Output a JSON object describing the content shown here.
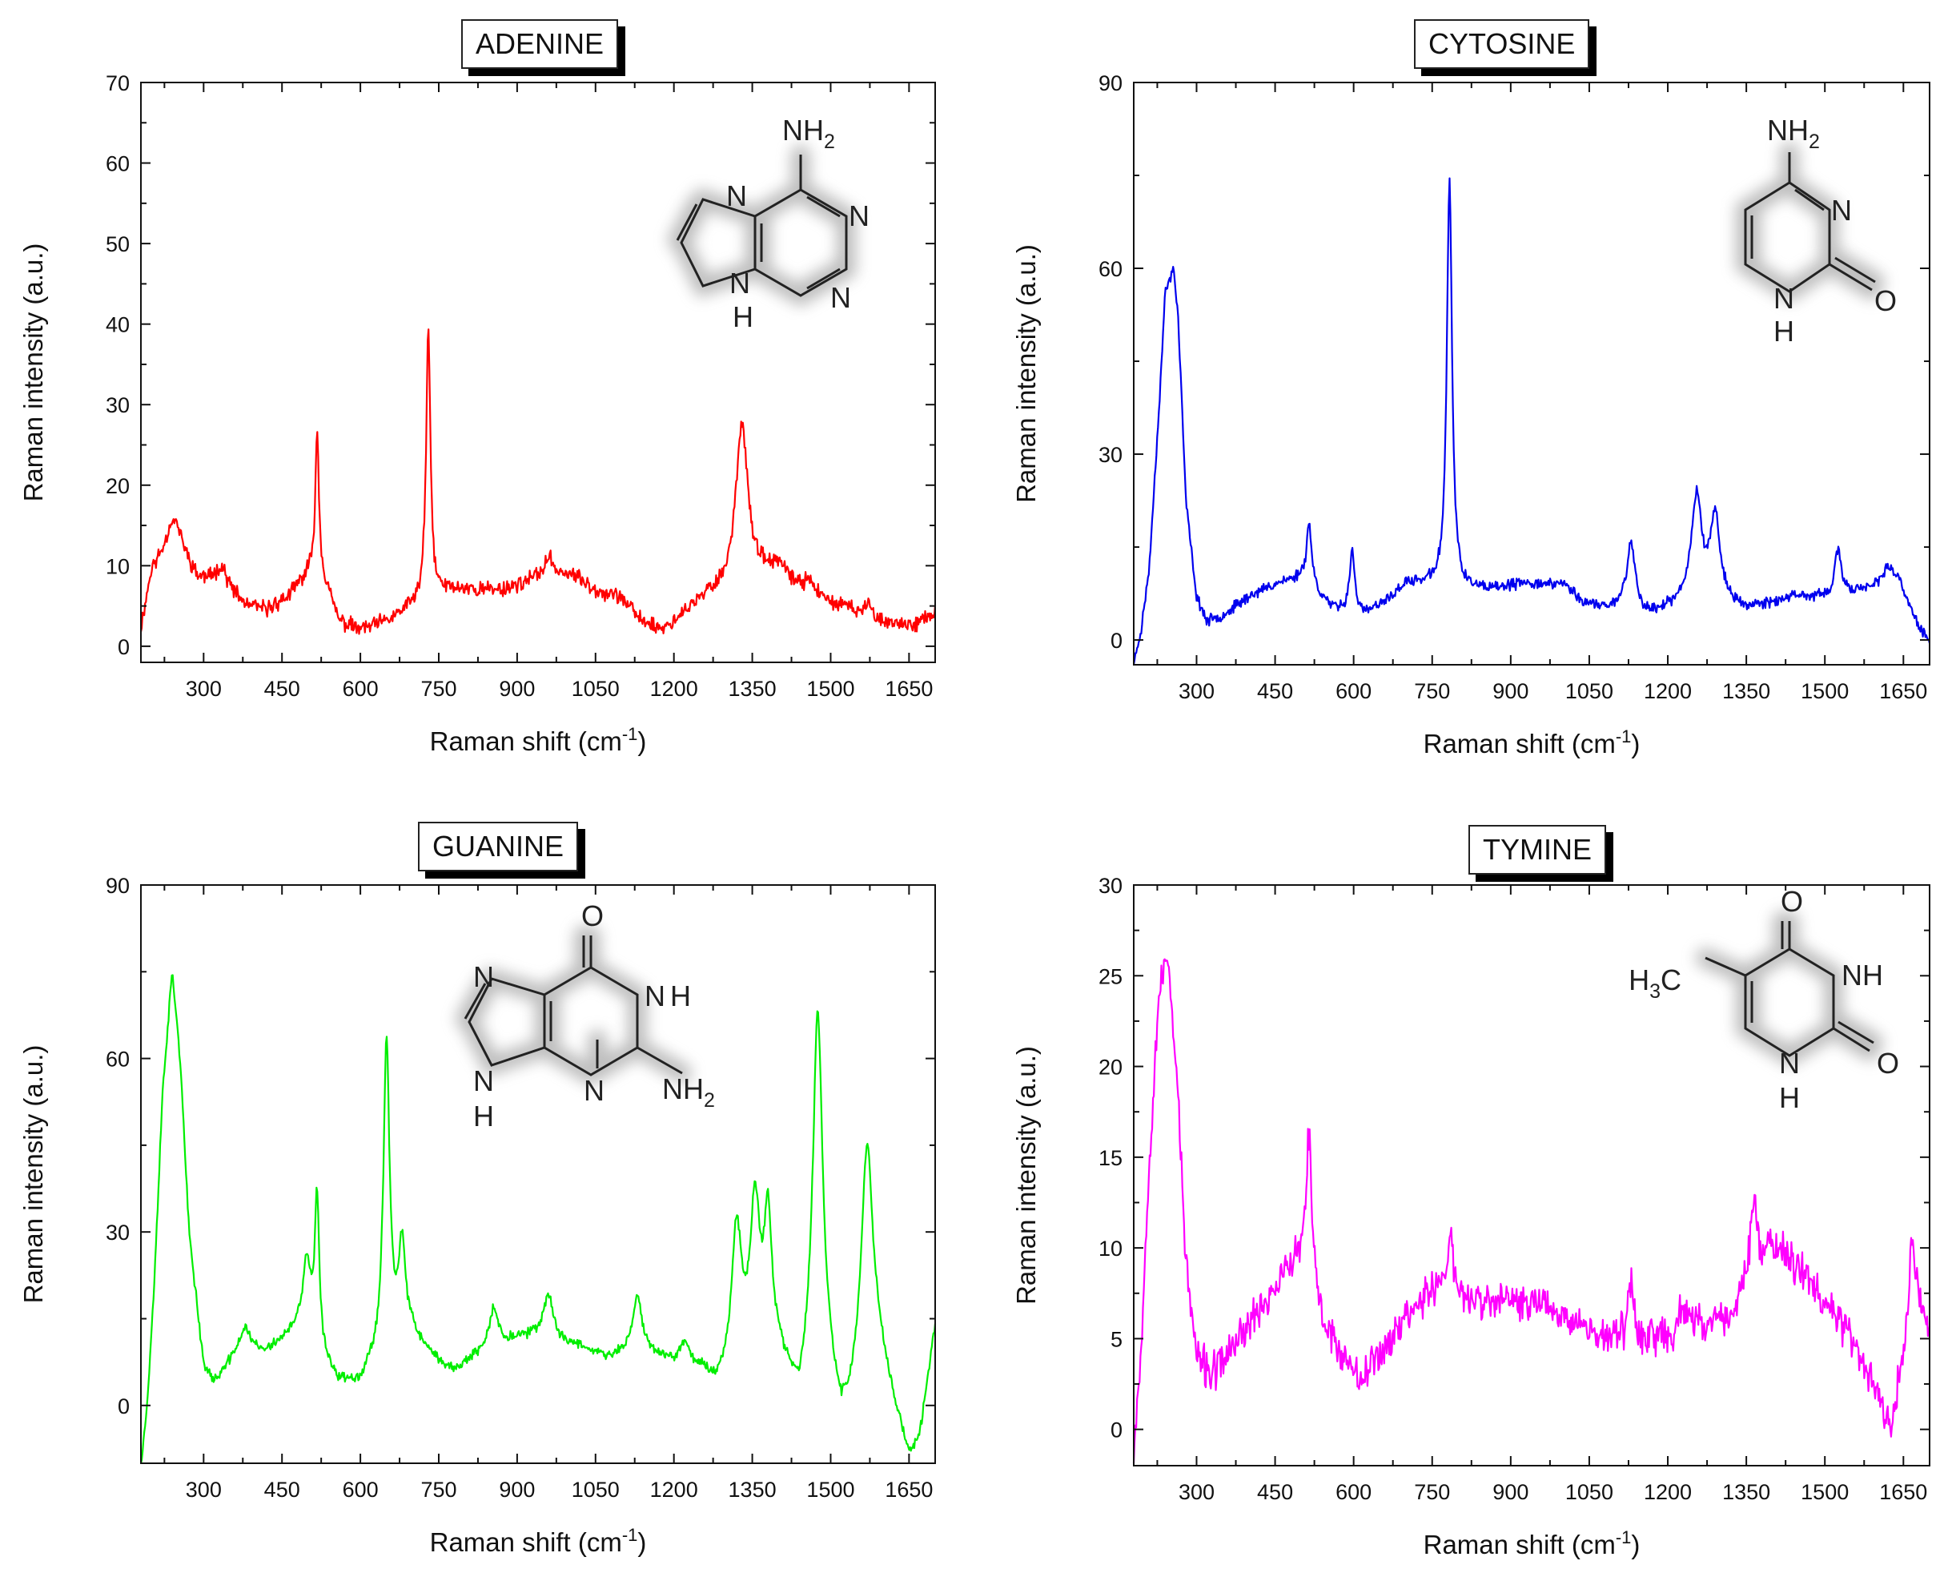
{
  "chart_data": [
    {
      "type": "line",
      "title": "ADENINE",
      "xlabel": "Raman shift (cm",
      "xlabel_sup": "-1",
      "xlabel_close": ")",
      "ylabel": "Raman intensity (a.u.)",
      "xlim": [
        180,
        1700
      ],
      "ylim": [
        -2,
        70
      ],
      "xticks": [
        300,
        450,
        600,
        750,
        900,
        1050,
        1200,
        1350,
        1500,
        1650
      ],
      "yticks": [
        0,
        10,
        20,
        30,
        40,
        50,
        60,
        70
      ],
      "color": "#ff0000",
      "baseline": [
        [
          180,
          2
        ],
        [
          200,
          9
        ],
        [
          240,
          12
        ],
        [
          290,
          8
        ],
        [
          330,
          8
        ],
        [
          380,
          5
        ],
        [
          420,
          4.5
        ],
        [
          460,
          6
        ],
        [
          500,
          9
        ],
        [
          520,
          10
        ],
        [
          560,
          3
        ],
        [
          600,
          2
        ],
        [
          650,
          3
        ],
        [
          700,
          5
        ],
        [
          730,
          6
        ],
        [
          770,
          7
        ],
        [
          820,
          7
        ],
        [
          870,
          7
        ],
        [
          920,
          8
        ],
        [
          960,
          9
        ],
        [
          1000,
          9
        ],
        [
          1050,
          7
        ],
        [
          1100,
          6
        ],
        [
          1140,
          3
        ],
        [
          1180,
          2
        ],
        [
          1220,
          4
        ],
        [
          1260,
          6
        ],
        [
          1300,
          7
        ],
        [
          1340,
          8
        ],
        [
          1380,
          9
        ],
        [
          1420,
          8
        ],
        [
          1470,
          6
        ],
        [
          1520,
          5
        ],
        [
          1560,
          4
        ],
        [
          1600,
          3
        ],
        [
          1650,
          2.5
        ],
        [
          1700,
          4
        ]
      ],
      "peaks": [
        [
          245,
          4,
          20
        ],
        [
          335,
          2,
          12
        ],
        [
          517,
          17,
          4
        ],
        [
          730,
          33,
          5
        ],
        [
          960,
          2,
          10
        ],
        [
          1330,
          20,
          14
        ],
        [
          1400,
          1.5,
          10
        ],
        [
          1460,
          2,
          10
        ],
        [
          1575,
          2,
          6
        ]
      ],
      "noise": 1.0,
      "seed": 11,
      "molecule": "adenine",
      "mol_labels": {
        "amine": "NH",
        "amine_sub": "2",
        "n1": "N",
        "n3": "N",
        "n7": "N",
        "n9": "N",
        "h9": "H"
      }
    },
    {
      "type": "line",
      "title": "CYTOSINE",
      "xlabel": "Raman shift (cm",
      "xlabel_sup": "-1",
      "xlabel_close": ")",
      "ylabel": "Raman intensity (a.u.)",
      "xlim": [
        180,
        1700
      ],
      "ylim": [
        -4,
        90
      ],
      "xticks": [
        300,
        450,
        600,
        750,
        900,
        1050,
        1200,
        1350,
        1500,
        1650
      ],
      "yticks": [
        0,
        30,
        60,
        90
      ],
      "color": "#0000ee",
      "baseline": [
        [
          180,
          -4
        ],
        [
          195,
          2
        ],
        [
          210,
          12
        ],
        [
          230,
          40
        ],
        [
          240,
          56
        ],
        [
          256,
          60
        ],
        [
          265,
          52
        ],
        [
          280,
          22
        ],
        [
          300,
          7
        ],
        [
          320,
          3
        ],
        [
          350,
          4
        ],
        [
          400,
          7
        ],
        [
          450,
          9
        ],
        [
          500,
          10
        ],
        [
          560,
          5
        ],
        [
          620,
          4
        ],
        [
          660,
          6
        ],
        [
          700,
          9
        ],
        [
          740,
          9
        ],
        [
          800,
          8
        ],
        [
          860,
          8
        ],
        [
          920,
          9
        ],
        [
          1000,
          9
        ],
        [
          1040,
          6
        ],
        [
          1080,
          5
        ],
        [
          1120,
          6
        ],
        [
          1160,
          4
        ],
        [
          1200,
          5
        ],
        [
          1240,
          6
        ],
        [
          1300,
          7
        ],
        [
          1340,
          5
        ],
        [
          1400,
          6
        ],
        [
          1450,
          7
        ],
        [
          1500,
          7
        ],
        [
          1560,
          8
        ],
        [
          1600,
          9
        ],
        [
          1640,
          10
        ],
        [
          1680,
          2
        ],
        [
          1700,
          0
        ]
      ],
      "peaks": [
        [
          515,
          10,
          6
        ],
        [
          597,
          10,
          6
        ],
        [
          783,
          66,
          6
        ],
        [
          1130,
          10,
          9
        ],
        [
          1255,
          17,
          12
        ],
        [
          1290,
          13,
          10
        ],
        [
          1525,
          7,
          7
        ],
        [
          1620,
          2,
          10
        ]
      ],
      "noise": 0.9,
      "seed": 23,
      "molecule": "cytosine",
      "mol_labels": {
        "amine": "NH",
        "amine_sub": "2",
        "n3": "N",
        "n1": "N",
        "h1": "H",
        "o": "O"
      }
    },
    {
      "type": "line",
      "title": "GUANINE",
      "xlabel": "Raman shift (cm",
      "xlabel_sup": "-1",
      "xlabel_close": ")",
      "ylabel": "Raman intensity (a.u.)",
      "xlim": [
        180,
        1700
      ],
      "ylim": [
        -10,
        90
      ],
      "xticks": [
        300,
        450,
        600,
        750,
        900,
        1050,
        1200,
        1350,
        1500,
        1650
      ],
      "yticks": [
        0,
        30,
        60,
        90
      ],
      "color": "#00ee00",
      "baseline": [
        [
          180,
          -10
        ],
        [
          192,
          0
        ],
        [
          205,
          20
        ],
        [
          222,
          55
        ],
        [
          240,
          75
        ],
        [
          255,
          60
        ],
        [
          272,
          30
        ],
        [
          300,
          7
        ],
        [
          320,
          4
        ],
        [
          360,
          8
        ],
        [
          420,
          9
        ],
        [
          460,
          12
        ],
        [
          500,
          15
        ],
        [
          530,
          8
        ],
        [
          560,
          4
        ],
        [
          600,
          4
        ],
        [
          630,
          8
        ],
        [
          650,
          10
        ],
        [
          700,
          12
        ],
        [
          740,
          8
        ],
        [
          780,
          6
        ],
        [
          830,
          9
        ],
        [
          880,
          11
        ],
        [
          930,
          12
        ],
        [
          980,
          11
        ],
        [
          1030,
          10
        ],
        [
          1070,
          8
        ],
        [
          1110,
          9
        ],
        [
          1150,
          9
        ],
        [
          1200,
          7
        ],
        [
          1250,
          6
        ],
        [
          1280,
          3
        ],
        [
          1310,
          5
        ],
        [
          1360,
          10
        ],
        [
          1400,
          8
        ],
        [
          1440,
          0
        ],
        [
          1480,
          10
        ],
        [
          1520,
          -3
        ],
        [
          1540,
          0
        ],
        [
          1560,
          8
        ],
        [
          1590,
          10
        ],
        [
          1620,
          0
        ],
        [
          1650,
          -9
        ],
        [
          1670,
          -6
        ],
        [
          1700,
          14
        ]
      ],
      "peaks": [
        [
          380,
          5,
          14
        ],
        [
          497,
          10,
          8
        ],
        [
          517,
          25,
          5
        ],
        [
          650,
          53,
          7
        ],
        [
          680,
          16,
          8
        ],
        [
          855,
          7,
          9
        ],
        [
          960,
          8,
          10
        ],
        [
          1130,
          10,
          10
        ],
        [
          1220,
          4,
          10
        ],
        [
          1320,
          24,
          12
        ],
        [
          1355,
          24,
          10
        ],
        [
          1380,
          23,
          9
        ],
        [
          1475,
          58,
          11
        ],
        [
          1570,
          36,
          12
        ]
      ],
      "noise": 0.9,
      "seed": 37,
      "molecule": "guanine",
      "mol_labels": {
        "o": "O",
        "n7": "N",
        "n1": "N",
        "h1": "H",
        "n9": "N",
        "h9": "H",
        "n3": "N",
        "amine": "NH",
        "amine_sub": "2"
      }
    },
    {
      "type": "line",
      "title": "TYMINE",
      "xlabel": "Raman shift (cm",
      "xlabel_sup": "-1",
      "xlabel_close": ")",
      "ylabel": "Raman intensity (a.u.)",
      "xlim": [
        180,
        1700
      ],
      "ylim": [
        -2,
        30
      ],
      "xticks": [
        300,
        450,
        600,
        750,
        900,
        1050,
        1200,
        1350,
        1500,
        1650
      ],
      "yticks": [
        0,
        5,
        10,
        15,
        20,
        25,
        30
      ],
      "color": "#ff00ff",
      "baseline": [
        [
          180,
          -1
        ],
        [
          195,
          5
        ],
        [
          210,
          15
        ],
        [
          228,
          24
        ],
        [
          245,
          26
        ],
        [
          262,
          20
        ],
        [
          280,
          9
        ],
        [
          300,
          4
        ],
        [
          330,
          3
        ],
        [
          380,
          5
        ],
        [
          430,
          7
        ],
        [
          480,
          9
        ],
        [
          510,
          10
        ],
        [
          540,
          6
        ],
        [
          580,
          4
        ],
        [
          620,
          3
        ],
        [
          670,
          5
        ],
        [
          720,
          7
        ],
        [
          770,
          8
        ],
        [
          820,
          7
        ],
        [
          870,
          7
        ],
        [
          920,
          7
        ],
        [
          970,
          7
        ],
        [
          1020,
          6
        ],
        [
          1080,
          5
        ],
        [
          1130,
          5
        ],
        [
          1180,
          5
        ],
        [
          1230,
          5
        ],
        [
          1280,
          6
        ],
        [
          1320,
          6
        ],
        [
          1360,
          9
        ],
        [
          1400,
          10
        ],
        [
          1450,
          9
        ],
        [
          1500,
          7
        ],
        [
          1550,
          5
        ],
        [
          1600,
          2
        ],
        [
          1625,
          0
        ],
        [
          1650,
          4
        ],
        [
          1670,
          8
        ],
        [
          1700,
          5
        ]
      ],
      "peaks": [
        [
          515,
          7,
          5
        ],
        [
          785,
          3,
          6
        ],
        [
          1130,
          3,
          7
        ],
        [
          1230,
          2,
          8
        ],
        [
          1365,
          3,
          8
        ],
        [
          1665,
          3,
          6
        ]
      ],
      "noise": 1.1,
      "seed": 53,
      "molecule": "thymine",
      "mol_labels": {
        "o4": "O",
        "methyl": "H",
        "methyl_sub": "3",
        "methyl_c": "C",
        "n3": "NH",
        "n1": "N",
        "h1": "H",
        "o2": "O"
      }
    }
  ]
}
